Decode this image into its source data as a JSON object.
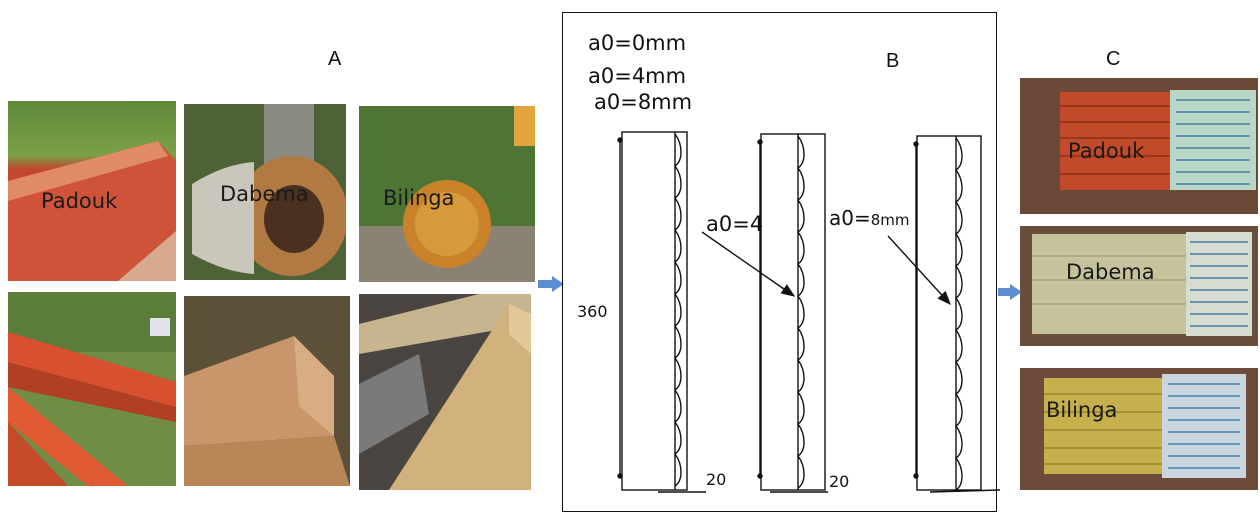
{
  "panels": {
    "a": "A",
    "b": "B",
    "c": "C"
  },
  "photos": {
    "padouk_log": "Padouk",
    "dabema_log": "Dabema",
    "bilinga_log": "Bilinga"
  },
  "diagram": {
    "legend": [
      "a0=0mm",
      "a0=4mm",
      "a0=8mm"
    ],
    "callout_4": "a0=4",
    "callout_8_prefix": "a0=",
    "callout_8_value": "8mm",
    "height_dim": "360",
    "width_dim_1": "20",
    "width_dim_2": "20"
  },
  "specimens": {
    "padouk": "Padouk",
    "dabema": "Dabema",
    "bilinga": "Bilinga"
  },
  "colors": {
    "padouk": "#c8462c",
    "dabema": "#c7c7a0",
    "bilinga": "#c9b35a",
    "arrow": "#5b8fd1"
  }
}
